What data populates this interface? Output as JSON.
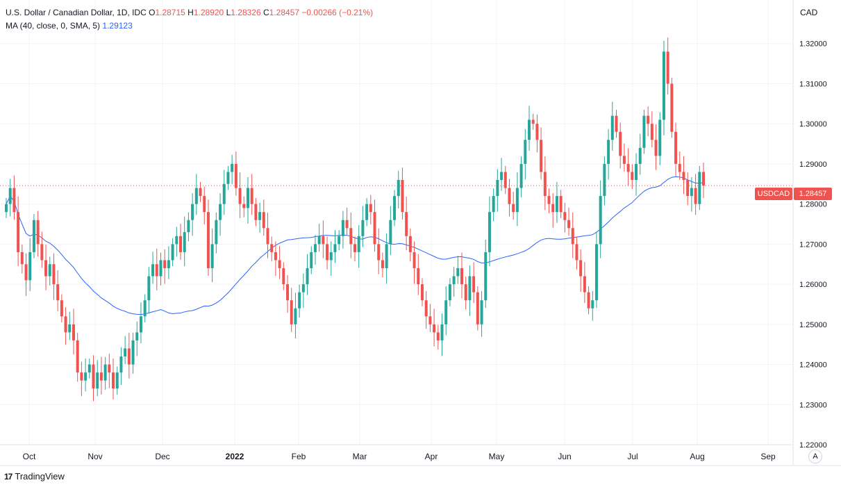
{
  "legend": {
    "symbol_title": "U.S. Dollar / Canadian Dollar, 1D, IDC",
    "o_label": "O",
    "o_value": "1.28715",
    "h_label": "H",
    "h_value": "1.28920",
    "l_label": "L",
    "l_value": "1.28326",
    "c_label": "C",
    "c_value": "1.28457",
    "change": "−0.00266 (−0.21%)",
    "ma_label": "MA (40, close, 0, SMA, 5)",
    "ma_value": "1.29123"
  },
  "axis": {
    "currency": "CAD"
  },
  "last_price": {
    "symbol": "USDCAD",
    "value": "1.28457"
  },
  "colors": {
    "up": "#26a69a",
    "down": "#ef5350",
    "ma": "#2962ff",
    "grid": "#f0f3fa",
    "axis_text": "#131722"
  },
  "footer": {
    "brand": "TradingView",
    "logo_glyph": "17"
  },
  "controls": {
    "auto_scale": "A"
  },
  "chart_data": {
    "type": "candlestick",
    "title": "U.S. Dollar / Canadian Dollar, 1D, IDC",
    "xlabel": "",
    "ylabel": "",
    "ylim": [
      1.22,
      1.33
    ],
    "y_ticks": [
      "1.32000",
      "1.31000",
      "1.30000",
      "1.29000",
      "1.28000",
      "1.27000",
      "1.26000",
      "1.25000",
      "1.24000",
      "1.23000",
      "1.22000"
    ],
    "x_ticks": [
      "Oct",
      "Nov",
      "Dec",
      "2022",
      "Feb",
      "Mar",
      "Apr",
      "May",
      "Jun",
      "Jul",
      "Aug",
      "Sep"
    ],
    "grid": true,
    "legend_position": "top-left",
    "series": [
      {
        "name": "USDCAD",
        "closes": [
          1.28,
          1.284,
          1.278,
          1.268,
          1.265,
          1.261,
          1.268,
          1.276,
          1.27,
          1.266,
          1.262,
          1.265,
          1.26,
          1.256,
          1.252,
          1.248,
          1.25,
          1.246,
          1.238,
          1.236,
          1.238,
          1.24,
          1.234,
          1.238,
          1.236,
          1.24,
          1.238,
          1.234,
          1.238,
          1.242,
          1.244,
          1.24,
          1.246,
          1.248,
          1.252,
          1.256,
          1.262,
          1.265,
          1.262,
          1.266,
          1.264,
          1.266,
          1.27,
          1.272,
          1.268,
          1.273,
          1.276,
          1.28,
          1.284,
          1.282,
          1.278,
          1.264,
          1.27,
          1.276,
          1.28,
          1.285,
          1.288,
          1.29,
          1.284,
          1.28,
          1.279,
          1.284,
          1.28,
          1.276,
          1.278,
          1.274,
          1.27,
          1.268,
          1.266,
          1.264,
          1.26,
          1.256,
          1.25,
          1.254,
          1.258,
          1.26,
          1.264,
          1.268,
          1.27,
          1.272,
          1.27,
          1.266,
          1.268,
          1.27,
          1.272,
          1.276,
          1.274,
          1.27,
          1.268,
          1.272,
          1.276,
          1.28,
          1.278,
          1.27,
          1.266,
          1.264,
          1.27,
          1.276,
          1.282,
          1.286,
          1.278,
          1.272,
          1.268,
          1.264,
          1.26,
          1.256,
          1.252,
          1.25,
          1.248,
          1.246,
          1.25,
          1.256,
          1.26,
          1.262,
          1.264,
          1.26,
          1.256,
          1.262,
          1.258,
          1.25,
          1.256,
          1.268,
          1.278,
          1.282,
          1.286,
          1.288,
          1.284,
          1.28,
          1.278,
          1.284,
          1.29,
          1.296,
          1.301,
          1.3,
          1.296,
          1.288,
          1.282,
          1.28,
          1.278,
          1.282,
          1.278,
          1.276,
          1.274,
          1.27,
          1.266,
          1.262,
          1.258,
          1.254,
          1.256,
          1.27,
          1.282,
          1.29,
          1.296,
          1.302,
          1.298,
          1.292,
          1.29,
          1.288,
          1.286,
          1.29,
          1.294,
          1.302,
          1.3,
          1.296,
          1.292,
          1.301,
          1.318,
          1.31,
          1.298,
          1.29,
          1.288,
          1.286,
          1.282,
          1.284,
          1.28,
          1.288,
          1.2846
        ]
      },
      {
        "name": "MA (40, close, 0, SMA, 5)",
        "last": 1.29123
      }
    ]
  }
}
